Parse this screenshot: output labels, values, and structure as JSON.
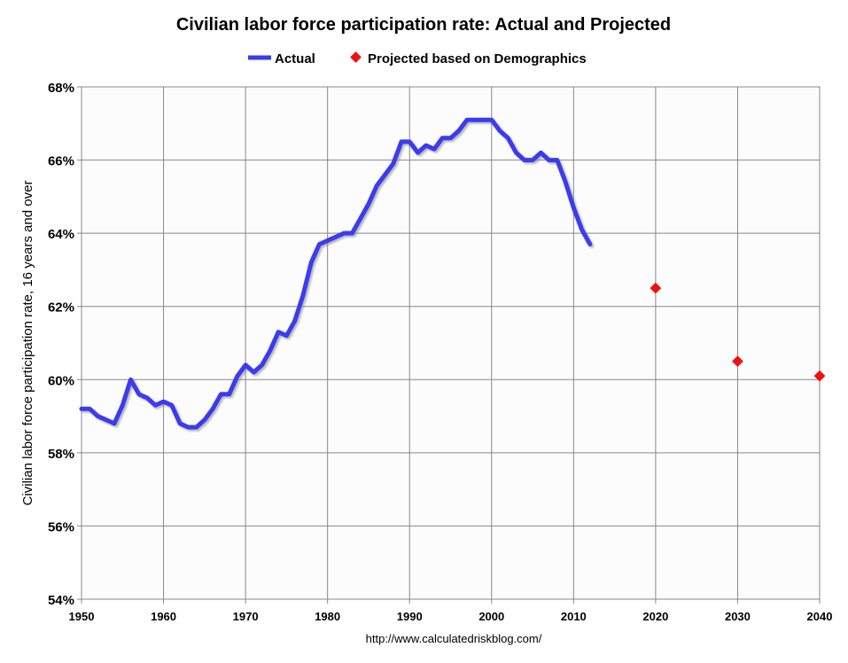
{
  "chart_data": {
    "type": "line",
    "title": "Civilian labor force participation rate: Actual and Projected",
    "ylabel": "Civilian labor force participation rate, 16 years and over",
    "xlabel": "",
    "source": "http://www.calculatedriskblog.com/",
    "xlim": [
      1950,
      2040
    ],
    "ylim": [
      54,
      68
    ],
    "x_ticks": [
      "1950",
      "1960",
      "1970",
      "1980",
      "1990",
      "2000",
      "2010",
      "2020",
      "2030",
      "2040"
    ],
    "y_ticks": [
      "54%",
      "56%",
      "58%",
      "60%",
      "62%",
      "64%",
      "66%",
      "68%"
    ],
    "grid": true,
    "legend_placement": "top",
    "series": [
      {
        "name": "Actual",
        "style": "line",
        "color": "#3a3af0",
        "x": [
          1950,
          1951,
          1952,
          1953,
          1954,
          1955,
          1956,
          1957,
          1958,
          1959,
          1960,
          1961,
          1962,
          1963,
          1964,
          1965,
          1966,
          1967,
          1968,
          1969,
          1970,
          1971,
          1972,
          1973,
          1974,
          1975,
          1976,
          1977,
          1978,
          1979,
          1980,
          1981,
          1982,
          1983,
          1984,
          1985,
          1986,
          1987,
          1988,
          1989,
          1990,
          1991,
          1992,
          1993,
          1994,
          1995,
          1996,
          1997,
          1998,
          1999,
          2000,
          2001,
          2002,
          2003,
          2004,
          2005,
          2006,
          2007,
          2008,
          2009,
          2010,
          2011,
          2012
        ],
        "values": [
          59.2,
          59.2,
          59.0,
          58.9,
          58.8,
          59.3,
          60.0,
          59.6,
          59.5,
          59.3,
          59.4,
          59.3,
          58.8,
          58.7,
          58.7,
          58.9,
          59.2,
          59.6,
          59.6,
          60.1,
          60.4,
          60.2,
          60.4,
          60.8,
          61.3,
          61.2,
          61.6,
          62.3,
          63.2,
          63.7,
          63.8,
          63.9,
          64.0,
          64.0,
          64.4,
          64.8,
          65.3,
          65.6,
          65.9,
          66.5,
          66.5,
          66.2,
          66.4,
          66.3,
          66.6,
          66.6,
          66.8,
          67.1,
          67.1,
          67.1,
          67.1,
          66.8,
          66.6,
          66.2,
          66.0,
          66.0,
          66.2,
          66.0,
          66.0,
          65.4,
          64.7,
          64.1,
          63.7
        ]
      },
      {
        "name": "Projected based on Demographics",
        "style": "diamond",
        "color": "#ee1111",
        "x": [
          2020,
          2030,
          2040
        ],
        "values": [
          62.5,
          60.5,
          60.1
        ]
      }
    ]
  }
}
